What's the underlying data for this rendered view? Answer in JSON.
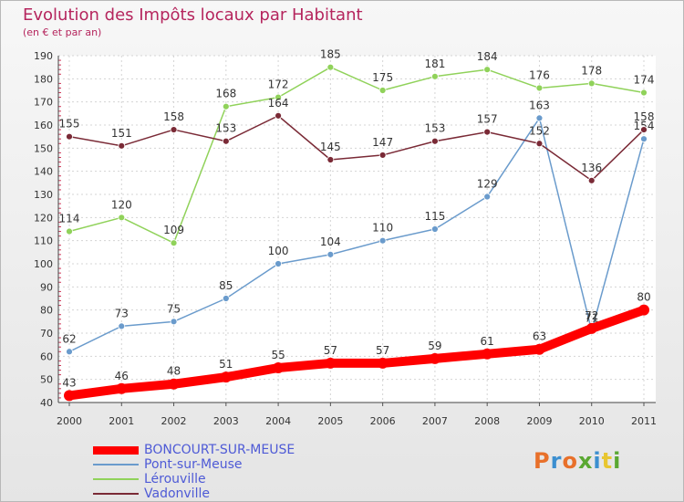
{
  "header": {
    "title": "Evolution des Impôts locaux par Habitant",
    "subtitle": "(en € et par an)"
  },
  "logo": {
    "text": "Proxiti",
    "colors": [
      "#e8702a",
      "#3c8fd0",
      "#e8702a",
      "#5aa832",
      "#3c8fd0",
      "#e8c630",
      "#5aa832"
    ]
  },
  "chart_data": {
    "type": "line",
    "title": "Evolution des Impôts locaux par Habitant",
    "subtitle": "(en € et par an)",
    "x": [
      "2000",
      "2001",
      "2002",
      "2003",
      "2004",
      "2005",
      "2006",
      "2007",
      "2008",
      "2009",
      "2010",
      "2011"
    ],
    "ylim": [
      40,
      190
    ],
    "yticks": [
      40,
      50,
      60,
      70,
      80,
      90,
      100,
      110,
      120,
      130,
      140,
      150,
      160,
      170,
      180,
      190
    ],
    "grid": true,
    "legend_position": "bottom-left",
    "series": [
      {
        "name": "BONCOURT-SUR-MEUSE",
        "color": "#ff0000",
        "emphasis": true,
        "values": [
          43,
          46,
          48,
          51,
          55,
          57,
          57,
          59,
          61,
          63,
          72,
          80
        ]
      },
      {
        "name": "Pont-sur-Meuse",
        "color": "#6a9bcc",
        "emphasis": false,
        "values": [
          62,
          73,
          75,
          85,
          100,
          104,
          110,
          115,
          129,
          163,
          71,
          154
        ]
      },
      {
        "name": "Lérouville",
        "color": "#90d25a",
        "emphasis": false,
        "values": [
          114,
          120,
          109,
          168,
          172,
          185,
          175,
          181,
          184,
          176,
          178,
          174
        ]
      },
      {
        "name": "Vadonville",
        "color": "#7a2a36",
        "emphasis": false,
        "values": [
          155,
          151,
          158,
          153,
          164,
          145,
          147,
          153,
          157,
          152,
          136,
          158
        ]
      }
    ]
  }
}
